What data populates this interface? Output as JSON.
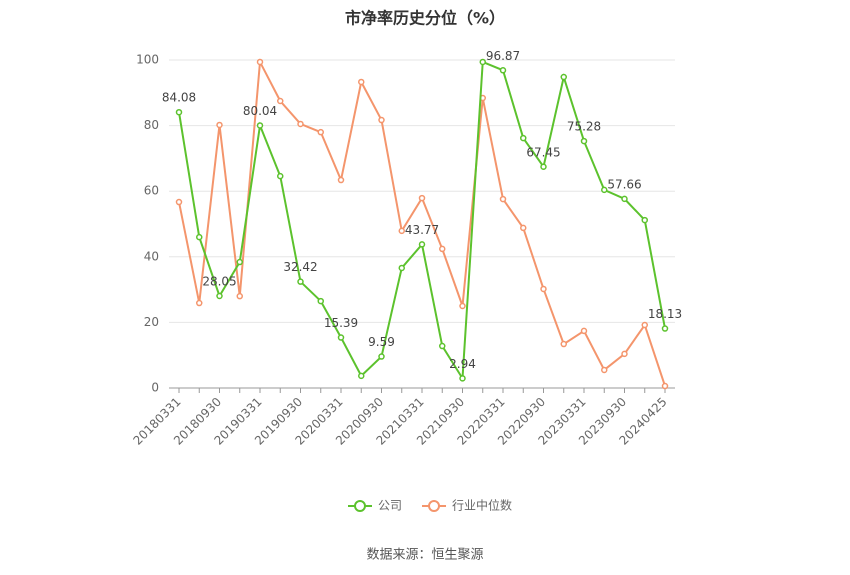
{
  "chart_data": {
    "type": "line",
    "title": "市净率历史分位（%）",
    "categories": [
      "20180331",
      null,
      "20180930",
      null,
      "20190331",
      null,
      "20190930",
      null,
      "20200331",
      null,
      "20200930",
      null,
      "20210331",
      null,
      "20210930",
      null,
      "20220331",
      null,
      "20220930",
      null,
      "20230331",
      null,
      "20230930",
      null,
      "20240425"
    ],
    "series": [
      {
        "name": "公司",
        "color": "#5cc22d",
        "values": [
          84.08,
          46.0,
          28.05,
          38.4,
          80.04,
          64.6,
          32.42,
          26.5,
          15.39,
          3.7,
          9.59,
          36.6,
          43.77,
          12.8,
          2.94,
          99.4,
          96.87,
          76.2,
          67.45,
          94.8,
          75.28,
          60.4,
          57.66,
          51.2,
          18.13
        ]
      },
      {
        "name": "行业中位数",
        "color": "#f4956c",
        "values": [
          56.7,
          25.9,
          80.2,
          28.0,
          99.4,
          87.5,
          80.5,
          78.0,
          63.4,
          93.3,
          81.7,
          47.9,
          57.9,
          42.4,
          25.0,
          88.4,
          57.6,
          48.8,
          30.2,
          13.4,
          17.4,
          5.5,
          10.4,
          19.2,
          0.6
        ]
      }
    ],
    "ylim": [
      0,
      100
    ],
    "yticks": [
      0,
      20,
      40,
      60,
      80,
      100
    ],
    "grid": true,
    "legend": "bottom",
    "source": "数据来源：恒生聚源"
  }
}
